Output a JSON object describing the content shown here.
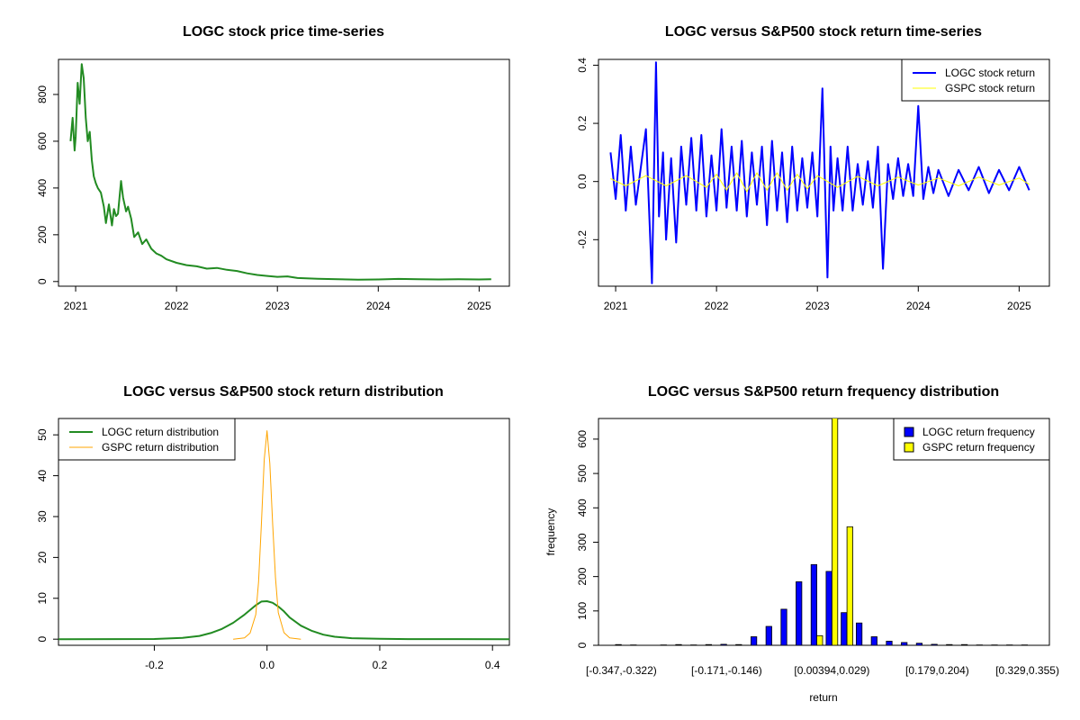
{
  "colors": {
    "logc_price": "#228B22",
    "logc_return": "#0000FF",
    "gspc_return": "#FFFF00",
    "logc_density": "#228B22",
    "gspc_density": "#FFA500",
    "logc_hist": "#0000FF",
    "gspc_hist": "#FFFF00"
  },
  "chart_data": [
    {
      "type": "line",
      "title": "LOGC stock price time-series",
      "xlabel": "",
      "ylabel": "",
      "xlim": [
        2020.83,
        2025.3
      ],
      "ylim": [
        -20,
        950
      ],
      "xticks": [
        2021,
        2022,
        2023,
        2024,
        2025
      ],
      "xtick_labels": [
        "2021",
        "2022",
        "2023",
        "2024",
        "2025"
      ],
      "yticks": [
        0,
        200,
        400,
        600,
        800
      ],
      "ytick_labels": [
        "0",
        "200",
        "400",
        "600",
        "800"
      ],
      "series": [
        {
          "color_key": "logc_price",
          "x": [
            2020.95,
            2020.97,
            2020.99,
            2021.0,
            2021.02,
            2021.04,
            2021.06,
            2021.08,
            2021.1,
            2021.12,
            2021.14,
            2021.16,
            2021.18,
            2021.2,
            2021.22,
            2021.25,
            2021.28,
            2021.3,
            2021.33,
            2021.36,
            2021.38,
            2021.4,
            2021.42,
            2021.45,
            2021.47,
            2021.5,
            2021.52,
            2021.55,
            2021.58,
            2021.62,
            2021.66,
            2021.7,
            2021.75,
            2021.8,
            2021.85,
            2021.9,
            2022.0,
            2022.1,
            2022.2,
            2022.3,
            2022.4,
            2022.5,
            2022.6,
            2022.7,
            2022.8,
            2022.9,
            2023.0,
            2023.1,
            2023.2,
            2023.4,
            2023.6,
            2023.8,
            2024.0,
            2024.2,
            2024.4,
            2024.6,
            2024.8,
            2025.0,
            2025.12
          ],
          "y": [
            600,
            700,
            560,
            620,
            850,
            760,
            930,
            870,
            700,
            600,
            640,
            520,
            450,
            420,
            400,
            380,
            320,
            250,
            330,
            240,
            310,
            280,
            290,
            430,
            360,
            300,
            320,
            270,
            190,
            210,
            160,
            180,
            140,
            120,
            110,
            95,
            80,
            70,
            65,
            55,
            58,
            50,
            45,
            35,
            28,
            24,
            20,
            22,
            15,
            12,
            10,
            8,
            9,
            11,
            10,
            9,
            10,
            9,
            10
          ]
        }
      ]
    },
    {
      "type": "line",
      "title": "LOGC versus S&P500 stock return time-series",
      "xlabel": "",
      "ylabel": "",
      "xlim": [
        2020.83,
        2025.3
      ],
      "ylim": [
        -0.36,
        0.42
      ],
      "xticks": [
        2021,
        2022,
        2023,
        2024,
        2025
      ],
      "xtick_labels": [
        "2021",
        "2022",
        "2023",
        "2024",
        "2025"
      ],
      "yticks": [
        -0.2,
        0.0,
        0.2,
        0.4
      ],
      "ytick_labels": [
        "-0.2",
        "0.0",
        "0.2",
        "0.4"
      ],
      "legend": {
        "position": "top-right",
        "entries": [
          {
            "label": "LOGC stock return",
            "color_key": "logc_return"
          },
          {
            "label": "GSPC stock return",
            "color_key": "gspc_return"
          }
        ]
      },
      "series": [
        {
          "name": "LOGC stock return",
          "color_key": "logc_return",
          "x": [
            2020.95,
            2021.0,
            2021.05,
            2021.1,
            2021.15,
            2021.2,
            2021.25,
            2021.3,
            2021.36,
            2021.4,
            2021.43,
            2021.47,
            2021.5,
            2021.55,
            2021.6,
            2021.65,
            2021.7,
            2021.75,
            2021.8,
            2021.85,
            2021.9,
            2021.95,
            2022.0,
            2022.05,
            2022.1,
            2022.15,
            2022.2,
            2022.25,
            2022.3,
            2022.35,
            2022.4,
            2022.45,
            2022.5,
            2022.55,
            2022.6,
            2022.65,
            2022.7,
            2022.75,
            2022.8,
            2022.85,
            2022.9,
            2022.95,
            2023.0,
            2023.05,
            2023.1,
            2023.13,
            2023.16,
            2023.2,
            2023.25,
            2023.3,
            2023.35,
            2023.4,
            2023.45,
            2023.5,
            2023.55,
            2023.6,
            2023.65,
            2023.7,
            2023.75,
            2023.8,
            2023.85,
            2023.9,
            2023.95,
            2024.0,
            2024.05,
            2024.1,
            2024.15,
            2024.2,
            2024.3,
            2024.4,
            2024.5,
            2024.6,
            2024.7,
            2024.8,
            2024.9,
            2025.0,
            2025.1
          ],
          "y": [
            0.1,
            -0.06,
            0.16,
            -0.1,
            0.12,
            -0.08,
            0.05,
            0.18,
            -0.35,
            0.41,
            -0.12,
            0.1,
            -0.2,
            0.08,
            -0.21,
            0.12,
            -0.08,
            0.15,
            -0.1,
            0.16,
            -0.12,
            0.09,
            -0.1,
            0.18,
            -0.09,
            0.12,
            -0.1,
            0.14,
            -0.12,
            0.1,
            -0.08,
            0.12,
            -0.15,
            0.14,
            -0.1,
            0.1,
            -0.14,
            0.12,
            -0.1,
            0.08,
            -0.09,
            0.1,
            -0.12,
            0.32,
            -0.33,
            0.12,
            -0.1,
            0.08,
            -0.1,
            0.12,
            -0.1,
            0.06,
            -0.08,
            0.07,
            -0.09,
            0.12,
            -0.3,
            0.06,
            -0.06,
            0.08,
            -0.05,
            0.06,
            -0.05,
            0.26,
            -0.06,
            0.05,
            -0.04,
            0.04,
            -0.05,
            0.04,
            -0.03,
            0.05,
            -0.04,
            0.04,
            -0.03,
            0.05,
            -0.03
          ]
        },
        {
          "name": "GSPC stock return",
          "color_key": "gspc_return",
          "x": [
            2020.95,
            2021.1,
            2021.3,
            2021.5,
            2021.7,
            2021.9,
            2022.0,
            2022.1,
            2022.2,
            2022.3,
            2022.4,
            2022.5,
            2022.6,
            2022.7,
            2022.8,
            2022.9,
            2023.0,
            2023.2,
            2023.4,
            2023.6,
            2023.8,
            2024.0,
            2024.2,
            2024.4,
            2024.6,
            2024.8,
            2025.0,
            2025.1
          ],
          "y": [
            0.01,
            -0.015,
            0.02,
            -0.015,
            0.02,
            -0.02,
            0.025,
            -0.03,
            0.03,
            -0.035,
            0.03,
            -0.03,
            0.03,
            -0.03,
            0.025,
            -0.025,
            0.02,
            -0.02,
            0.018,
            -0.015,
            0.015,
            -0.012,
            0.012,
            -0.015,
            0.015,
            -0.012,
            0.012,
            -0.01
          ]
        }
      ]
    },
    {
      "type": "line",
      "title": "LOGC versus S&P500 stock return distribution",
      "xlabel": "",
      "ylabel": "",
      "xlim": [
        -0.37,
        0.43
      ],
      "ylim": [
        -1.5,
        54
      ],
      "xticks": [
        -0.2,
        0.0,
        0.2,
        0.4
      ],
      "xtick_labels": [
        "-0.2",
        "0.0",
        "0.2",
        "0.4"
      ],
      "yticks": [
        0,
        10,
        20,
        30,
        40,
        50
      ],
      "ytick_labels": [
        "0",
        "10",
        "20",
        "30",
        "40",
        "50"
      ],
      "legend": {
        "position": "top-left",
        "entries": [
          {
            "label": "LOGC return distribution",
            "color_key": "logc_density"
          },
          {
            "label": "GSPC return distribution",
            "color_key": "gspc_density"
          }
        ]
      },
      "series": [
        {
          "name": "LOGC return distribution",
          "color_key": "logc_density",
          "x": [
            -0.37,
            -0.2,
            -0.15,
            -0.12,
            -0.1,
            -0.08,
            -0.06,
            -0.04,
            -0.02,
            -0.01,
            0.0,
            0.01,
            0.02,
            0.03,
            0.04,
            0.06,
            0.08,
            0.1,
            0.12,
            0.15,
            0.2,
            0.25,
            0.43
          ],
          "y": [
            0,
            0.05,
            0.3,
            0.8,
            1.5,
            2.5,
            4.0,
            6.0,
            8.3,
            9.2,
            9.3,
            8.9,
            8.0,
            6.8,
            5.3,
            3.3,
            2.0,
            1.1,
            0.6,
            0.25,
            0.1,
            0.03,
            0
          ]
        },
        {
          "name": "GSPC return distribution",
          "color_key": "gspc_density",
          "x": [
            -0.06,
            -0.04,
            -0.03,
            -0.02,
            -0.015,
            -0.01,
            -0.005,
            0.0,
            0.005,
            0.01,
            0.015,
            0.02,
            0.03,
            0.04,
            0.06
          ],
          "y": [
            0,
            0.3,
            1.5,
            6.0,
            14,
            28,
            44,
            51,
            43,
            28,
            15,
            6.5,
            1.6,
            0.3,
            0
          ]
        }
      ]
    },
    {
      "type": "bar",
      "title": "LOGC versus S&P500 return frequency distribution",
      "xlabel": "return",
      "ylabel": "frequency",
      "ylim": [
        0,
        660
      ],
      "yticks": [
        0,
        100,
        200,
        300,
        400,
        500,
        600
      ],
      "ytick_labels": [
        "0",
        "100",
        "200",
        "300",
        "400",
        "500",
        "600"
      ],
      "category_labels_shown": [
        "[-0.347,-0.322)",
        "[-0.171,-0.146)",
        "[0.00394,0.029)",
        "[0.179,0.204)",
        "[0.329,0.355)"
      ],
      "category_label_indices": [
        0,
        7,
        14,
        21,
        27
      ],
      "categories": [
        "[-0.347,-0.322)",
        "[-0.322,-0.297)",
        "[-0.297,-0.272)",
        "[-0.272,-0.247)",
        "[-0.247,-0.222)",
        "[-0.222,-0.196)",
        "[-0.196,-0.171)",
        "[-0.171,-0.146)",
        "[-0.146,-0.121)",
        "[-0.121,-0.0962)",
        "[-0.0962,-0.0711)",
        "[-0.0711,-0.046)",
        "[-0.046,-0.0209)",
        "[-0.0209,0.00394)",
        "[0.00394,0.029)",
        "[0.029,0.0541)",
        "[0.0541,0.0791)",
        "[0.0791,0.104)",
        "[0.104,0.129)",
        "[0.129,0.154)",
        "[0.154,0.179)",
        "[0.179,0.204)",
        "[0.204,0.229)",
        "[0.229,0.254)",
        "[0.254,0.279)",
        "[0.279,0.304)",
        "[0.304,0.329)",
        "[0.329,0.355)"
      ],
      "legend": {
        "position": "top-right",
        "entries": [
          {
            "label": "LOGC return frequency",
            "color_key": "logc_hist"
          },
          {
            "label": "GSPC return frequency",
            "color_key": "gspc_hist"
          }
        ]
      },
      "series": [
        {
          "name": "LOGC return frequency",
          "color_key": "logc_hist",
          "values": [
            2,
            1,
            0,
            1,
            2,
            1,
            2,
            3,
            2,
            25,
            55,
            105,
            185,
            235,
            215,
            95,
            65,
            25,
            12,
            8,
            6,
            3,
            2,
            2,
            1,
            1,
            1,
            1
          ]
        },
        {
          "name": "GSPC return frequency",
          "color_key": "gspc_hist",
          "values": [
            0,
            0,
            0,
            0,
            0,
            0,
            0,
            0,
            0,
            0,
            0,
            0,
            0,
            28,
            670,
            345,
            0,
            0,
            0,
            0,
            0,
            0,
            0,
            0,
            0,
            0,
            0,
            0
          ]
        }
      ]
    }
  ]
}
